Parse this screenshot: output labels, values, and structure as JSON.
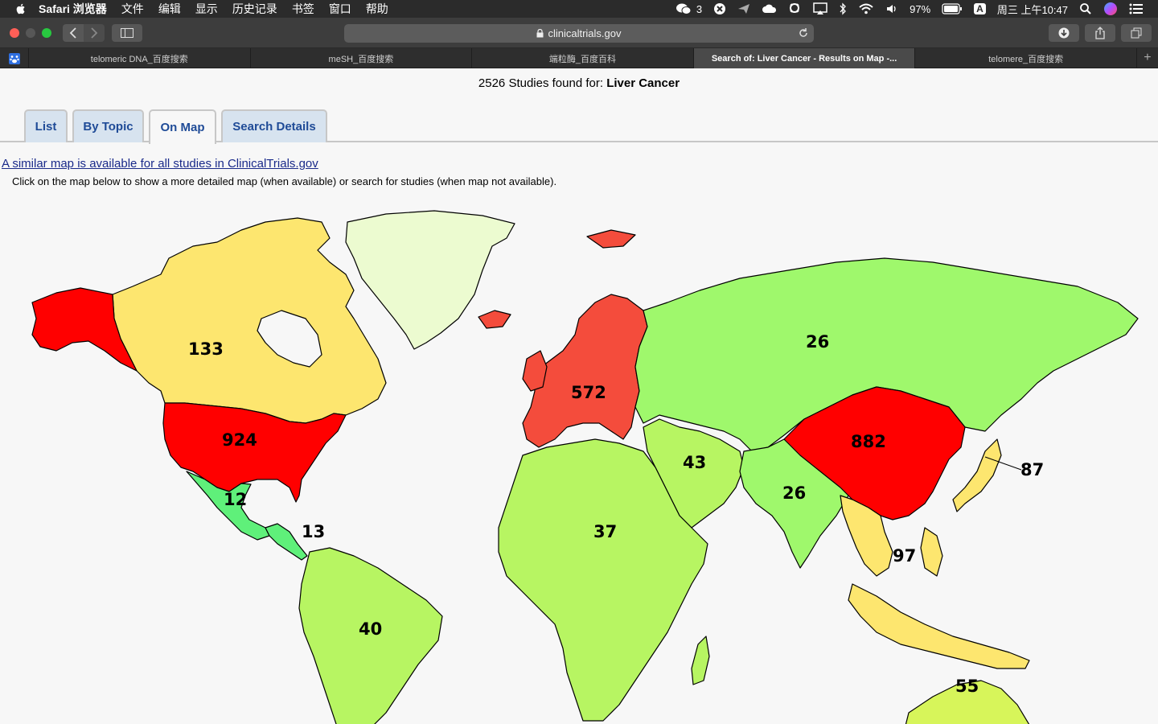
{
  "menubar": {
    "app_name": "Safari 浏览器",
    "menus": [
      "文件",
      "编辑",
      "显示",
      "历史记录",
      "书签",
      "窗口",
      "帮助"
    ],
    "wechat_count": "3",
    "battery": "97%",
    "input_method": "A",
    "clock": "周三 上午10:47"
  },
  "toolbar": {
    "url": "clinicaltrials.gov"
  },
  "tabs": [
    {
      "label": "telomeric DNA_百度搜索"
    },
    {
      "label": "meSH_百度搜索"
    },
    {
      "label": "端粒酶_百度百科"
    },
    {
      "label": "Search of: Liver Cancer - Results on Map -..."
    },
    {
      "label": "telomere_百度搜索"
    }
  ],
  "page": {
    "studies_prefix": "2526 Studies found for:",
    "query": "Liver Cancer",
    "nav_tabs": [
      "List",
      "By Topic",
      "On Map",
      "Search Details"
    ],
    "map_link": "A similar map is available for all studies in ClinicalTrials.gov",
    "instructions": "Click on the map below to show a more detailed map (when available) or search for studies (when map not available)."
  },
  "map_regions": [
    {
      "name": "Canada",
      "count": "133",
      "color": "#fde66f"
    },
    {
      "name": "United States",
      "count": "924",
      "color": "#ff0000"
    },
    {
      "name": "Mexico",
      "count": "12",
      "color": "#5ff07a"
    },
    {
      "name": "Central America",
      "count": "13",
      "color": "#5ff07a"
    },
    {
      "name": "South America",
      "count": "40",
      "color": "#b7f562"
    },
    {
      "name": "Europe",
      "count": "572",
      "color": "#f44c3c"
    },
    {
      "name": "Russia and Central Asia",
      "count": "26",
      "color": "#9ff86c"
    },
    {
      "name": "Middle East",
      "count": "43",
      "color": "#b7f562"
    },
    {
      "name": "Africa",
      "count": "37",
      "color": "#b7f562"
    },
    {
      "name": "South Asia",
      "count": "26",
      "color": "#9ff86c"
    },
    {
      "name": "China",
      "count": "882",
      "color": "#ff0000"
    },
    {
      "name": "Japan",
      "count": "87",
      "color": "#fde66f"
    },
    {
      "name": "Southeast Asia",
      "count": "97",
      "color": "#fde66f"
    },
    {
      "name": "Oceania",
      "count": "55",
      "color": "#d7f55a"
    },
    {
      "name": "Greenland",
      "count": "",
      "color": "#ecfbd0"
    }
  ]
}
